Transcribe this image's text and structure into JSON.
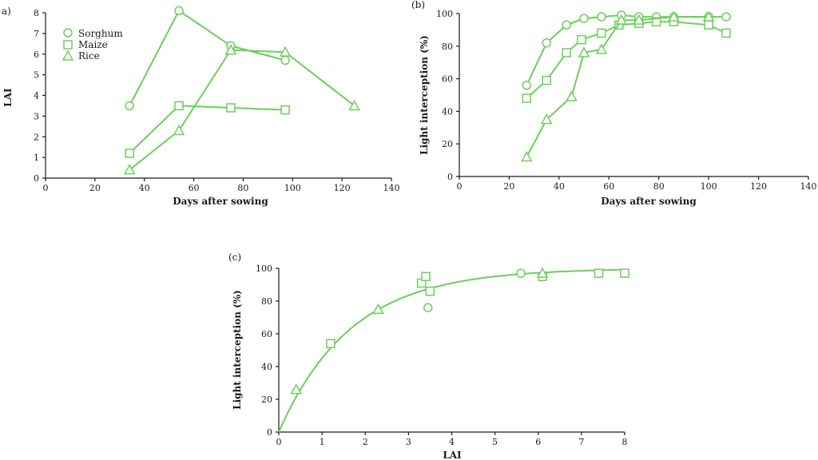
{
  "colors": {
    "series": "#6bcf5b",
    "axis": "#1a1a1a"
  },
  "legend": {
    "entries": [
      {
        "label": "Sorghum",
        "marker": "circle"
      },
      {
        "label": "Maize",
        "marker": "square"
      },
      {
        "label": "Rice",
        "marker": "triangle"
      }
    ]
  },
  "chart_data": [
    {
      "id": "a",
      "panel_label": "a)",
      "type": "line",
      "xlabel": "Days after sowing",
      "ylabel": "LAI",
      "xlim": [
        0,
        140
      ],
      "ylim": [
        0,
        8
      ],
      "xticks": [
        0,
        20,
        40,
        60,
        80,
        100,
        120,
        140
      ],
      "yticks": [
        0,
        1,
        2,
        3,
        4,
        5,
        6,
        7,
        8
      ],
      "series": [
        {
          "name": "Sorghum",
          "marker": "circle",
          "x": [
            34,
            54,
            75,
            97
          ],
          "y": [
            3.5,
            8.1,
            6.4,
            5.7
          ]
        },
        {
          "name": "Maize",
          "marker": "square",
          "x": [
            34,
            54,
            75,
            97
          ],
          "y": [
            1.2,
            3.5,
            3.4,
            3.3
          ]
        },
        {
          "name": "Rice",
          "marker": "triangle",
          "x": [
            34,
            54,
            75,
            97,
            125
          ],
          "y": [
            0.4,
            2.3,
            6.2,
            6.1,
            3.5
          ]
        }
      ]
    },
    {
      "id": "b",
      "panel_label": "(b)",
      "type": "line",
      "xlabel": "Days after sowing",
      "ylabel": "Light interception (%)",
      "xlim": [
        0,
        140
      ],
      "ylim": [
        0,
        100
      ],
      "xticks": [
        0,
        20,
        40,
        60,
        80,
        100,
        120,
        140
      ],
      "yticks": [
        0,
        20,
        40,
        60,
        80,
        100
      ],
      "series": [
        {
          "name": "Sorghum",
          "marker": "circle",
          "x": [
            27,
            35,
            43,
            50,
            57,
            65,
            72,
            79,
            86,
            100,
            107
          ],
          "y": [
            56,
            82,
            93,
            97,
            98,
            99,
            98,
            98,
            98,
            98,
            98
          ]
        },
        {
          "name": "Maize",
          "marker": "square",
          "x": [
            27,
            35,
            43,
            49,
            57,
            64,
            72,
            79,
            86,
            100,
            107
          ],
          "y": [
            48,
            59,
            76,
            84,
            88,
            93,
            94,
            95,
            95,
            93,
            88
          ]
        },
        {
          "name": "Rice",
          "marker": "triangle",
          "x": [
            27,
            35,
            45,
            50,
            57,
            65,
            72,
            86,
            100
          ],
          "y": [
            12,
            35,
            49,
            76,
            78,
            96,
            96,
            98,
            98
          ]
        }
      ]
    },
    {
      "id": "c",
      "panel_label": "(c)",
      "type": "scatter",
      "xlabel": "LAI",
      "ylabel": "Light interception (%)",
      "xlim": [
        0,
        8
      ],
      "ylim": [
        0,
        100
      ],
      "xticks": [
        0,
        1,
        2,
        3,
        4,
        5,
        6,
        7,
        8
      ],
      "yticks": [
        0,
        20,
        40,
        60,
        80,
        100
      ],
      "series": [
        {
          "name": "Sorghum",
          "marker": "circle",
          "x": [
            3.45,
            5.6,
            7.4,
            8.0
          ],
          "y": [
            76,
            97,
            97,
            97
          ]
        },
        {
          "name": "Maize",
          "marker": "square",
          "x": [
            1.2,
            3.3,
            3.4,
            3.5,
            6.1,
            7.4,
            8.0
          ],
          "y": [
            54,
            91,
            95,
            86,
            95,
            97,
            97
          ]
        },
        {
          "name": "Rice",
          "marker": "triangle",
          "x": [
            0.4,
            2.3,
            6.1
          ],
          "y": [
            26,
            75,
            97
          ]
        }
      ],
      "fit_curve": {
        "form": "y = 100*(1 - exp(-k*LAI))",
        "k": 0.6
      }
    }
  ]
}
